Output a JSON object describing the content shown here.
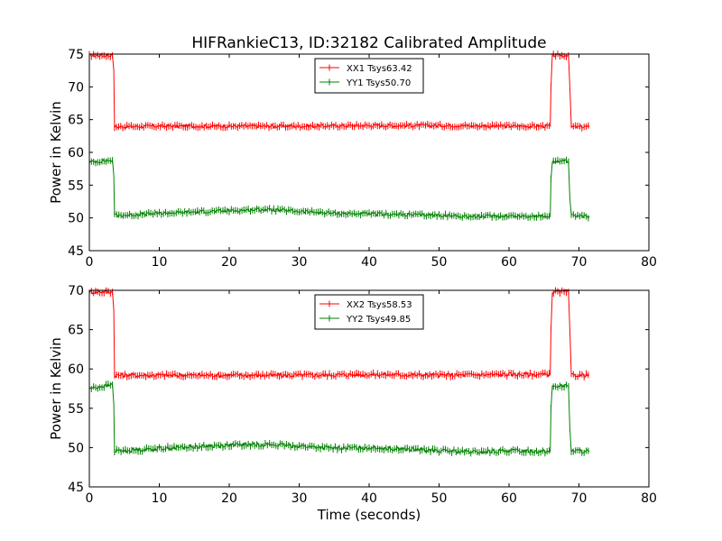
{
  "chart_data": [
    {
      "type": "line",
      "title": "HIFRankieC13, ID:32182 Calibrated Amplitude",
      "xlabel": "",
      "ylabel": "Power in Kelvin",
      "xlim": [
        0,
        80
      ],
      "ylim": [
        45,
        75
      ],
      "xticks": [
        "0",
        "10",
        "20",
        "30",
        "40",
        "50",
        "60",
        "70",
        "80"
      ],
      "yticks": [
        "45",
        "50",
        "55",
        "60",
        "65",
        "70",
        "75"
      ],
      "grid": false,
      "legend_position": "top-center",
      "series": [
        {
          "name": "XX1 Tsys63.42",
          "color": "#ff0000",
          "x": [
            0,
            3.3,
            3.5,
            3.6,
            10,
            20,
            30,
            40,
            50,
            60,
            65.9,
            66.0,
            66.2,
            68.5,
            68.7,
            68.9,
            71.5
          ],
          "y": [
            74.8,
            74.8,
            72.5,
            63.9,
            64.0,
            64.0,
            64.0,
            64.1,
            64.1,
            64.0,
            64.0,
            70.0,
            74.8,
            74.8,
            70.0,
            63.9,
            63.9
          ]
        },
        {
          "name": "YY1 Tsys50.70",
          "color": "#008000",
          "x": [
            0,
            3.3,
            3.5,
            3.6,
            5,
            10,
            15,
            20,
            25,
            30,
            35,
            40,
            45,
            50,
            55,
            60,
            65.9,
            66.0,
            66.2,
            68.5,
            68.7,
            68.9,
            71.5
          ],
          "y": [
            58.5,
            58.8,
            56.5,
            50.4,
            50.4,
            50.7,
            50.9,
            51.1,
            51.3,
            51.0,
            50.7,
            50.6,
            50.5,
            50.4,
            50.2,
            50.3,
            50.2,
            56.0,
            58.7,
            58.6,
            53.0,
            50.3,
            50.2
          ]
        }
      ]
    },
    {
      "type": "line",
      "title": "",
      "xlabel": "Time (seconds)",
      "ylabel": "Power in Kelvin",
      "xlim": [
        0,
        80
      ],
      "ylim": [
        45,
        70
      ],
      "xticks": [
        "0",
        "10",
        "20",
        "30",
        "40",
        "50",
        "60",
        "70",
        "80"
      ],
      "yticks": [
        "45",
        "50",
        "55",
        "60",
        "65",
        "70"
      ],
      "grid": false,
      "legend_position": "top-center",
      "series": [
        {
          "name": "XX2 Tsys58.53",
          "color": "#ff0000",
          "x": [
            0,
            3.3,
            3.5,
            3.6,
            10,
            20,
            30,
            40,
            50,
            60,
            65.9,
            66.0,
            66.2,
            68.5,
            68.7,
            68.9,
            71.5
          ],
          "y": [
            69.8,
            69.8,
            67.5,
            59.2,
            59.2,
            59.2,
            59.2,
            59.3,
            59.2,
            59.3,
            59.3,
            65.0,
            69.8,
            69.8,
            65.0,
            59.2,
            59.2
          ]
        },
        {
          "name": "YY2 Tsys49.85",
          "color": "#008000",
          "x": [
            0,
            3.3,
            3.5,
            3.6,
            5,
            10,
            15,
            20,
            25,
            30,
            35,
            40,
            45,
            50,
            55,
            60,
            65.9,
            66.0,
            66.2,
            68.5,
            68.7,
            68.9,
            71.5
          ],
          "y": [
            57.5,
            58.0,
            55.5,
            49.6,
            49.6,
            49.9,
            50.1,
            50.3,
            50.4,
            50.2,
            49.9,
            50.0,
            49.8,
            49.6,
            49.4,
            49.6,
            49.5,
            55.0,
            57.8,
            57.8,
            52.5,
            49.6,
            49.5
          ]
        }
      ]
    }
  ]
}
